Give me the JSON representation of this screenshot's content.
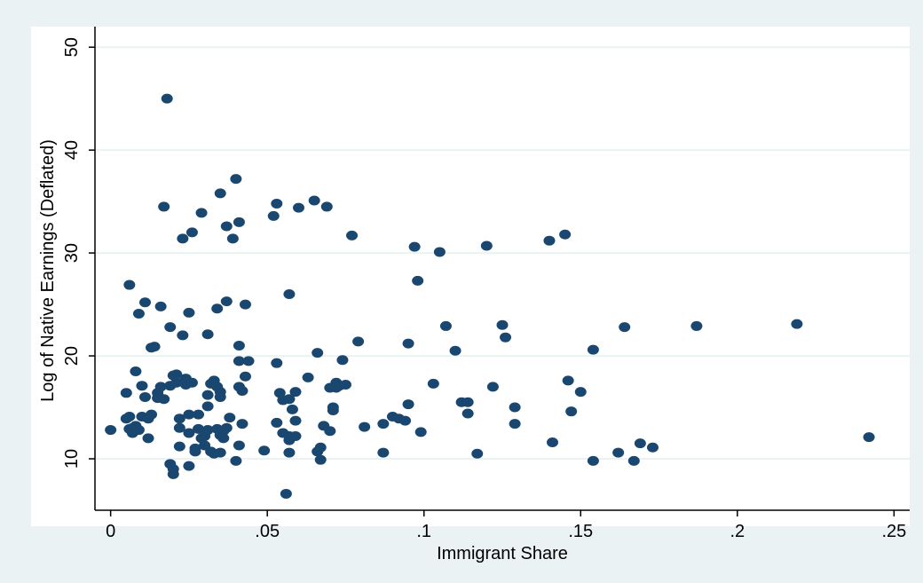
{
  "colors": {
    "outer_background": "#eaf2f3",
    "plot_background": "#ffffff",
    "gridline": "#eaf2f3",
    "marker": "#1a476f",
    "axis": "#000000"
  },
  "chart_data": {
    "type": "scatter",
    "xlabel": "Immigrant Share",
    "ylabel": "Log of Native Earnings (Deflated)",
    "xlim": [
      -0.005,
      0.255
    ],
    "ylim": [
      5,
      52
    ],
    "xticks": [
      0,
      0.05,
      0.1,
      0.15,
      0.2,
      0.25
    ],
    "xtick_labels": [
      "0",
      ".05",
      ".1",
      ".15",
      ".2",
      ".25"
    ],
    "yticks": [
      10,
      20,
      30,
      40,
      50
    ],
    "ytick_labels": [
      "10",
      "20",
      "30",
      "40",
      "50"
    ],
    "grid": true,
    "legend": "none",
    "points": [
      [
        0.0,
        12.8
      ],
      [
        0.005,
        16.4
      ],
      [
        0.005,
        13.9
      ],
      [
        0.006,
        14.1
      ],
      [
        0.006,
        26.9
      ],
      [
        0.006,
        12.9
      ],
      [
        0.007,
        13.0
      ],
      [
        0.007,
        12.5
      ],
      [
        0.008,
        18.5
      ],
      [
        0.008,
        13.2
      ],
      [
        0.009,
        12.8
      ],
      [
        0.009,
        24.1
      ],
      [
        0.01,
        17.1
      ],
      [
        0.01,
        14.1
      ],
      [
        0.011,
        16.0
      ],
      [
        0.011,
        25.2
      ],
      [
        0.012,
        13.9
      ],
      [
        0.012,
        12.0
      ],
      [
        0.013,
        14.3
      ],
      [
        0.013,
        20.8
      ],
      [
        0.014,
        20.9
      ],
      [
        0.015,
        16.4
      ],
      [
        0.015,
        15.9
      ],
      [
        0.016,
        17.0
      ],
      [
        0.016,
        24.8
      ],
      [
        0.017,
        15.8
      ],
      [
        0.017,
        34.5
      ],
      [
        0.018,
        45.0
      ],
      [
        0.019,
        22.8
      ],
      [
        0.019,
        17.1
      ],
      [
        0.019,
        9.5
      ],
      [
        0.02,
        18.1
      ],
      [
        0.02,
        9.0
      ],
      [
        0.02,
        8.5
      ],
      [
        0.021,
        18.2
      ],
      [
        0.021,
        17.4
      ],
      [
        0.022,
        13.9
      ],
      [
        0.022,
        11.2
      ],
      [
        0.022,
        13.0
      ],
      [
        0.023,
        22.0
      ],
      [
        0.023,
        31.4
      ],
      [
        0.024,
        17.8
      ],
      [
        0.024,
        17.2
      ],
      [
        0.025,
        14.3
      ],
      [
        0.025,
        24.2
      ],
      [
        0.025,
        12.5
      ],
      [
        0.025,
        9.3
      ],
      [
        0.026,
        32.0
      ],
      [
        0.026,
        17.4
      ],
      [
        0.027,
        11.0
      ],
      [
        0.027,
        10.7
      ],
      [
        0.028,
        12.9
      ],
      [
        0.028,
        14.3
      ],
      [
        0.029,
        12.0
      ],
      [
        0.029,
        33.9
      ],
      [
        0.03,
        11.3
      ],
      [
        0.03,
        12.2
      ],
      [
        0.031,
        22.1
      ],
      [
        0.031,
        16.2
      ],
      [
        0.031,
        15.1
      ],
      [
        0.031,
        12.8
      ],
      [
        0.032,
        17.3
      ],
      [
        0.032,
        10.7
      ],
      [
        0.033,
        17.6
      ],
      [
        0.033,
        10.5
      ],
      [
        0.034,
        24.6
      ],
      [
        0.034,
        12.9
      ],
      [
        0.034,
        17.0
      ],
      [
        0.035,
        16.5
      ],
      [
        0.035,
        16.0
      ],
      [
        0.035,
        10.6
      ],
      [
        0.035,
        12.3
      ],
      [
        0.035,
        35.8
      ],
      [
        0.036,
        12.7
      ],
      [
        0.036,
        12.0
      ],
      [
        0.037,
        32.6
      ],
      [
        0.037,
        25.3
      ],
      [
        0.037,
        13.0
      ],
      [
        0.038,
        14.0
      ],
      [
        0.039,
        31.4
      ],
      [
        0.04,
        37.2
      ],
      [
        0.04,
        9.8
      ],
      [
        0.041,
        33.0
      ],
      [
        0.041,
        21.0
      ],
      [
        0.041,
        19.5
      ],
      [
        0.041,
        11.3
      ],
      [
        0.041,
        17.0
      ],
      [
        0.042,
        16.6
      ],
      [
        0.042,
        13.4
      ],
      [
        0.043,
        25.0
      ],
      [
        0.043,
        18.0
      ],
      [
        0.044,
        19.5
      ],
      [
        0.049,
        10.8
      ],
      [
        0.052,
        33.6
      ],
      [
        0.053,
        34.8
      ],
      [
        0.053,
        13.5
      ],
      [
        0.053,
        19.3
      ],
      [
        0.054,
        16.4
      ],
      [
        0.055,
        15.7
      ],
      [
        0.055,
        12.5
      ],
      [
        0.056,
        6.6
      ],
      [
        0.057,
        15.8
      ],
      [
        0.057,
        12.2
      ],
      [
        0.057,
        11.8
      ],
      [
        0.057,
        10.6
      ],
      [
        0.057,
        26.0
      ],
      [
        0.058,
        14.8
      ],
      [
        0.059,
        16.5
      ],
      [
        0.059,
        13.7
      ],
      [
        0.059,
        12.2
      ],
      [
        0.06,
        34.4
      ],
      [
        0.063,
        17.9
      ],
      [
        0.065,
        35.1
      ],
      [
        0.066,
        20.3
      ],
      [
        0.066,
        10.7
      ],
      [
        0.067,
        11.1
      ],
      [
        0.067,
        9.9
      ],
      [
        0.068,
        13.2
      ],
      [
        0.069,
        34.5
      ],
      [
        0.07,
        16.9
      ],
      [
        0.07,
        12.7
      ],
      [
        0.071,
        15.0
      ],
      [
        0.071,
        14.7
      ],
      [
        0.072,
        17.4
      ],
      [
        0.072,
        16.9
      ],
      [
        0.073,
        17.1
      ],
      [
        0.074,
        19.6
      ],
      [
        0.075,
        17.2
      ],
      [
        0.077,
        31.7
      ],
      [
        0.079,
        21.4
      ],
      [
        0.081,
        13.1
      ],
      [
        0.087,
        13.4
      ],
      [
        0.087,
        10.6
      ],
      [
        0.09,
        14.1
      ],
      [
        0.092,
        13.9
      ],
      [
        0.094,
        13.7
      ],
      [
        0.095,
        15.3
      ],
      [
        0.095,
        21.2
      ],
      [
        0.097,
        30.6
      ],
      [
        0.098,
        27.3
      ],
      [
        0.099,
        12.6
      ],
      [
        0.103,
        17.3
      ],
      [
        0.105,
        30.1
      ],
      [
        0.107,
        22.9
      ],
      [
        0.11,
        20.5
      ],
      [
        0.112,
        15.5
      ],
      [
        0.114,
        15.5
      ],
      [
        0.114,
        14.4
      ],
      [
        0.117,
        10.5
      ],
      [
        0.12,
        30.7
      ],
      [
        0.122,
        17.0
      ],
      [
        0.125,
        23.0
      ],
      [
        0.126,
        21.8
      ],
      [
        0.129,
        15.0
      ],
      [
        0.129,
        13.4
      ],
      [
        0.14,
        31.2
      ],
      [
        0.141,
        11.6
      ],
      [
        0.145,
        31.8
      ],
      [
        0.146,
        17.6
      ],
      [
        0.147,
        14.6
      ],
      [
        0.15,
        16.5
      ],
      [
        0.154,
        20.6
      ],
      [
        0.154,
        9.8
      ],
      [
        0.162,
        10.6
      ],
      [
        0.164,
        22.8
      ],
      [
        0.167,
        9.8
      ],
      [
        0.169,
        11.5
      ],
      [
        0.173,
        11.1
      ],
      [
        0.187,
        22.9
      ],
      [
        0.219,
        23.1
      ],
      [
        0.242,
        12.1
      ]
    ]
  }
}
